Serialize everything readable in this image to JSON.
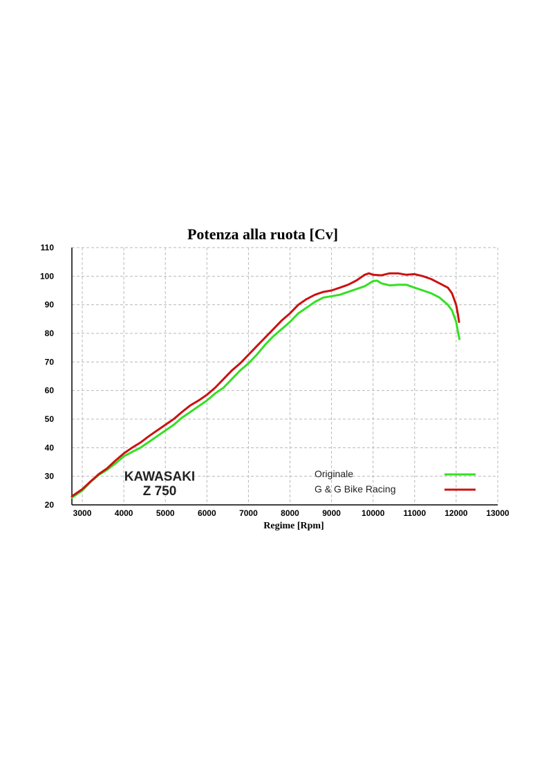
{
  "chart_data": {
    "type": "line",
    "title": "Potenza alla ruota [Cv]",
    "xlabel": "Regime [Rpm]",
    "ylabel": "",
    "xlim": [
      2750,
      13000
    ],
    "ylim": [
      20,
      110
    ],
    "x_ticks": [
      3000,
      4000,
      5000,
      6000,
      7000,
      8000,
      9000,
      10000,
      11000,
      12000,
      13000
    ],
    "y_ticks": [
      20,
      30,
      40,
      50,
      60,
      70,
      80,
      90,
      100,
      110
    ],
    "grid": true,
    "legend_position": "bottom-right",
    "brand": {
      "line1": "KAWASAKI",
      "line2": "Z 750"
    },
    "series": [
      {
        "name": "Originale",
        "color": "#33e022",
        "points": [
          [
            2750,
            22.5
          ],
          [
            3000,
            25
          ],
          [
            3200,
            28
          ],
          [
            3400,
            30.5
          ],
          [
            3600,
            32.3
          ],
          [
            3800,
            34.5
          ],
          [
            4000,
            37
          ],
          [
            4200,
            38.5
          ],
          [
            4400,
            40
          ],
          [
            4600,
            42
          ],
          [
            4800,
            44
          ],
          [
            5000,
            46
          ],
          [
            5200,
            48
          ],
          [
            5400,
            50.5
          ],
          [
            5600,
            52.5
          ],
          [
            5800,
            54.5
          ],
          [
            6000,
            56.5
          ],
          [
            6200,
            59
          ],
          [
            6400,
            61
          ],
          [
            6600,
            64
          ],
          [
            6800,
            67
          ],
          [
            7000,
            69.5
          ],
          [
            7200,
            72.5
          ],
          [
            7400,
            76
          ],
          [
            7600,
            79
          ],
          [
            7800,
            81.5
          ],
          [
            8000,
            84
          ],
          [
            8200,
            87
          ],
          [
            8400,
            89
          ],
          [
            8600,
            91
          ],
          [
            8800,
            92.5
          ],
          [
            9000,
            93
          ],
          [
            9200,
            93.5
          ],
          [
            9400,
            94.5
          ],
          [
            9600,
            95.5
          ],
          [
            9800,
            96.5
          ],
          [
            10000,
            98.3
          ],
          [
            10100,
            98.4
          ],
          [
            10200,
            97.5
          ],
          [
            10400,
            96.8
          ],
          [
            10600,
            97
          ],
          [
            10800,
            97
          ],
          [
            11000,
            96
          ],
          [
            11200,
            95
          ],
          [
            11400,
            94
          ],
          [
            11600,
            92.5
          ],
          [
            11800,
            90
          ],
          [
            11900,
            88
          ],
          [
            12000,
            84
          ],
          [
            12050,
            80
          ],
          [
            12080,
            78
          ]
        ]
      },
      {
        "name": "G & G Bike Racing",
        "color": "#cc1111",
        "points": [
          [
            2750,
            23
          ],
          [
            3000,
            25.5
          ],
          [
            3200,
            28.2
          ],
          [
            3400,
            30.8
          ],
          [
            3600,
            32.8
          ],
          [
            3800,
            35.5
          ],
          [
            4000,
            38
          ],
          [
            4200,
            40
          ],
          [
            4400,
            41.8
          ],
          [
            4600,
            44
          ],
          [
            4800,
            46
          ],
          [
            5000,
            48
          ],
          [
            5200,
            50
          ],
          [
            5400,
            52.5
          ],
          [
            5600,
            54.8
          ],
          [
            5800,
            56.5
          ],
          [
            6000,
            58.5
          ],
          [
            6200,
            61
          ],
          [
            6400,
            64
          ],
          [
            6600,
            67
          ],
          [
            6800,
            69.5
          ],
          [
            7000,
            72.5
          ],
          [
            7200,
            75.5
          ],
          [
            7400,
            78.5
          ],
          [
            7600,
            81.5
          ],
          [
            7800,
            84.5
          ],
          [
            8000,
            87
          ],
          [
            8200,
            90
          ],
          [
            8400,
            92
          ],
          [
            8600,
            93.5
          ],
          [
            8800,
            94.5
          ],
          [
            9000,
            95
          ],
          [
            9200,
            96
          ],
          [
            9400,
            97
          ],
          [
            9600,
            98.5
          ],
          [
            9800,
            100.5
          ],
          [
            9900,
            101
          ],
          [
            10000,
            100.5
          ],
          [
            10200,
            100.3
          ],
          [
            10400,
            101
          ],
          [
            10600,
            101
          ],
          [
            10800,
            100.5
          ],
          [
            11000,
            100.7
          ],
          [
            11200,
            100
          ],
          [
            11400,
            99
          ],
          [
            11600,
            97.5
          ],
          [
            11800,
            96
          ],
          [
            11900,
            94
          ],
          [
            12000,
            90
          ],
          [
            12050,
            86
          ],
          [
            12070,
            84
          ]
        ]
      }
    ]
  }
}
